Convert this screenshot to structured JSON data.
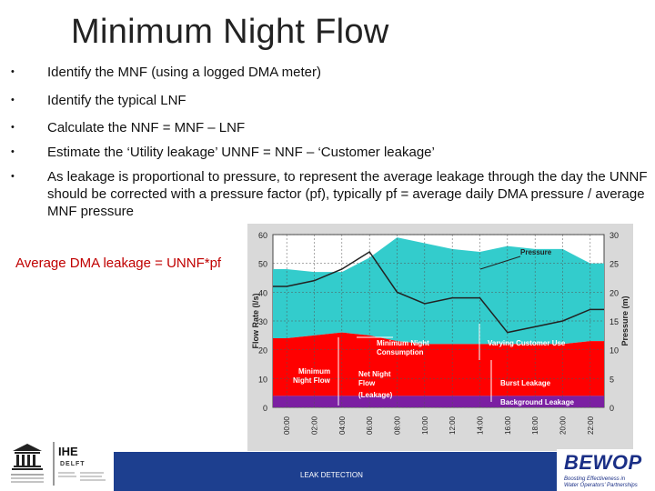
{
  "slide": {
    "title": "Minimum Night Flow",
    "bullets": [
      "Identify the MNF (using a logged DMA meter)",
      "Identify the typical LNF",
      "Calculate the NNF = MNF – LNF",
      "Estimate the ‘Utility leakage’ UNNF = NNF – ‘Customer leakage’",
      "As leakage is proportional to pressure, to represent the average leakage through the day the UNNF should be corrected with a pressure factor (pf), typically pf = average daily DMA pressure / average MNF pressure"
    ],
    "bullet_marker": "•",
    "highlight": "Average DMA leakage = UNNF*pf",
    "footer": "LEAK DETECTION"
  },
  "logos": {
    "left_name": "IHE",
    "left_sub": "DELFT",
    "right_name": "BEWOP",
    "right_tagline_1": "Boosting Effectiveness in",
    "right_tagline_2": "Water Operators' Partnerships"
  },
  "chart_data": {
    "type": "area",
    "x": [
      "00:00",
      "02:00",
      "04:00",
      "06:00",
      "08:00",
      "10:00",
      "12:00",
      "14:00",
      "16:00",
      "18:00",
      "20:00",
      "22:00"
    ],
    "ylabel": "Flow Rate (l/s)",
    "y2label": "Pressure (m)",
    "ylim": [
      0,
      60
    ],
    "y2lim": [
      0,
      30
    ],
    "yticks": [
      "60",
      "50",
      "40",
      "30",
      "20",
      "10",
      "0"
    ],
    "y2ticks": [
      "30",
      "25",
      "20",
      "15",
      "10",
      "5",
      "0"
    ],
    "grid": true,
    "series": [
      {
        "name": "Background Leakage",
        "color": "#7b1fa2",
        "values": [
          4,
          4,
          4,
          4,
          4,
          4,
          4,
          4,
          4,
          4,
          4,
          4
        ]
      },
      {
        "name": "Burst Leakage",
        "color": "#ff0000",
        "values": [
          20,
          21,
          22,
          21,
          19,
          18,
          18,
          18,
          18,
          18,
          18,
          19
        ]
      },
      {
        "name": "Varying Customer Use",
        "color": "#33cccc",
        "values": [
          24,
          22,
          21,
          27,
          36,
          35,
          33,
          32,
          34,
          33,
          33,
          27
        ]
      },
      {
        "name": "Pressure",
        "color": "#222222",
        "values": [
          21,
          22,
          24,
          27,
          20,
          18,
          19,
          19,
          13,
          14,
          15,
          17
        ]
      }
    ],
    "annotations": [
      "Pressure",
      "Minimum Night Consumption",
      "Varying Customer Use",
      "Minimum Night Flow",
      "Net Night Flow (Leakage)",
      "Burst Leakage",
      "Background Leakage"
    ]
  },
  "colors": {
    "footer_bar": "#1d3f8f",
    "highlight_text": "#c00000",
    "chart_bg": "#d9d9d9"
  }
}
